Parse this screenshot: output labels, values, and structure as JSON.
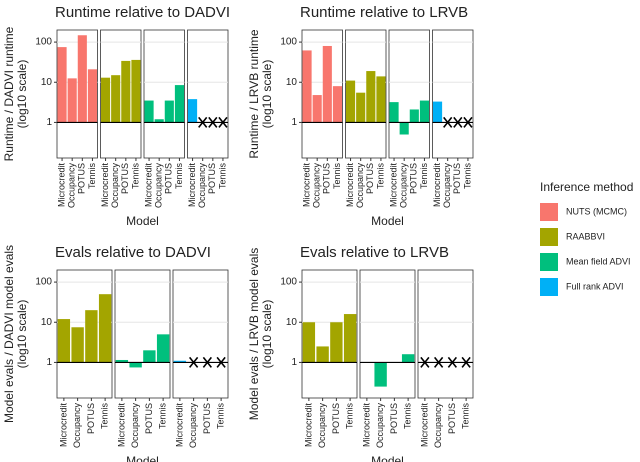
{
  "chart_data": [
    {
      "type": "bar",
      "title": "Runtime relative to DADVI",
      "x_label": "Model",
      "y_label": [
        "Runtime / DADVI runtime",
        "(log10 scale)"
      ],
      "categories": [
        "Microcredit",
        "Occupancy",
        "POTUS",
        "Tennis"
      ],
      "log_scale": true,
      "ylim": [
        0.13,
        200
      ],
      "yticks": [
        1,
        10,
        100
      ],
      "baseline": 1,
      "grid": true,
      "series": [
        {
          "name": "NUTS (MCMC)",
          "color": "#f8766d",
          "values": [
            75,
            12.5,
            148,
            21
          ]
        },
        {
          "name": "RAABBVI",
          "color": "#a3a500",
          "values": [
            13,
            15,
            34,
            36
          ]
        },
        {
          "name": "Mean field ADVI",
          "color": "#00bf7d",
          "values": [
            3.5,
            1.2,
            3.5,
            8.5
          ]
        },
        {
          "name": "Full rank ADVI",
          "color": "#00b0f6",
          "values": [
            3.8,
            null,
            null,
            null
          ]
        }
      ]
    },
    {
      "type": "bar",
      "title": "Runtime relative to LRVB",
      "x_label": "Model",
      "y_label": [
        "Runtime / LRVB runtime",
        "(log10 scale)"
      ],
      "categories": [
        "Microcredit",
        "Occupancy",
        "POTUS",
        "Tennis"
      ],
      "log_scale": true,
      "ylim": [
        0.13,
        200
      ],
      "yticks": [
        1,
        10,
        100
      ],
      "baseline": 1,
      "grid": true,
      "series": [
        {
          "color": "#f8766d",
          "values": [
            62,
            4.8,
            80,
            8
          ]
        },
        {
          "color": "#a3a500",
          "values": [
            11,
            5.5,
            19,
            14
          ]
        },
        {
          "color": "#00bf7d",
          "values": [
            3.2,
            0.5,
            2.1,
            3.5
          ]
        },
        {
          "color": "#00b0f6",
          "values": [
            3.3,
            null,
            null,
            null
          ]
        }
      ]
    },
    {
      "type": "bar",
      "title": "Evals relative to DADVI",
      "x_label": "Model",
      "y_label": [
        "Model evals / DADVI model evals",
        "(log10 scale)"
      ],
      "categories": [
        "Microcredit",
        "Occupancy",
        "POTUS",
        "Tennis"
      ],
      "log_scale": true,
      "ylim": [
        0.13,
        200
      ],
      "yticks": [
        1,
        10,
        100
      ],
      "baseline": 1,
      "grid": true,
      "series": [
        {
          "color": "#a3a500",
          "values": [
            12,
            7.5,
            20,
            50
          ]
        },
        {
          "color": "#00bf7d",
          "values": [
            1.15,
            0.75,
            2,
            5
          ]
        },
        {
          "color": "#00b0f6",
          "values": [
            1.1,
            null,
            null,
            null
          ]
        }
      ]
    },
    {
      "type": "bar",
      "title": "Evals relative to LRVB",
      "x_label": "Model",
      "y_label": [
        "Model evals / LRVB model evals",
        "(log10 scale)"
      ],
      "categories": [
        "Microcredit",
        "Occupancy",
        "POTUS",
        "Tennis"
      ],
      "log_scale": true,
      "ylim": [
        0.13,
        200
      ],
      "yticks": [
        1,
        10,
        100
      ],
      "baseline": 1,
      "grid": true,
      "series": [
        {
          "color": "#a3a500",
          "values": [
            10,
            2.5,
            10,
            16
          ]
        },
        {
          "color": "#00bf7d",
          "values": [
            1,
            0.25,
            1,
            1.6
          ]
        },
        {
          "color": "#00b0f6",
          "values": [
            null,
            null,
            null,
            null
          ]
        }
      ]
    }
  ],
  "legend": {
    "title": "Inference method"
  }
}
